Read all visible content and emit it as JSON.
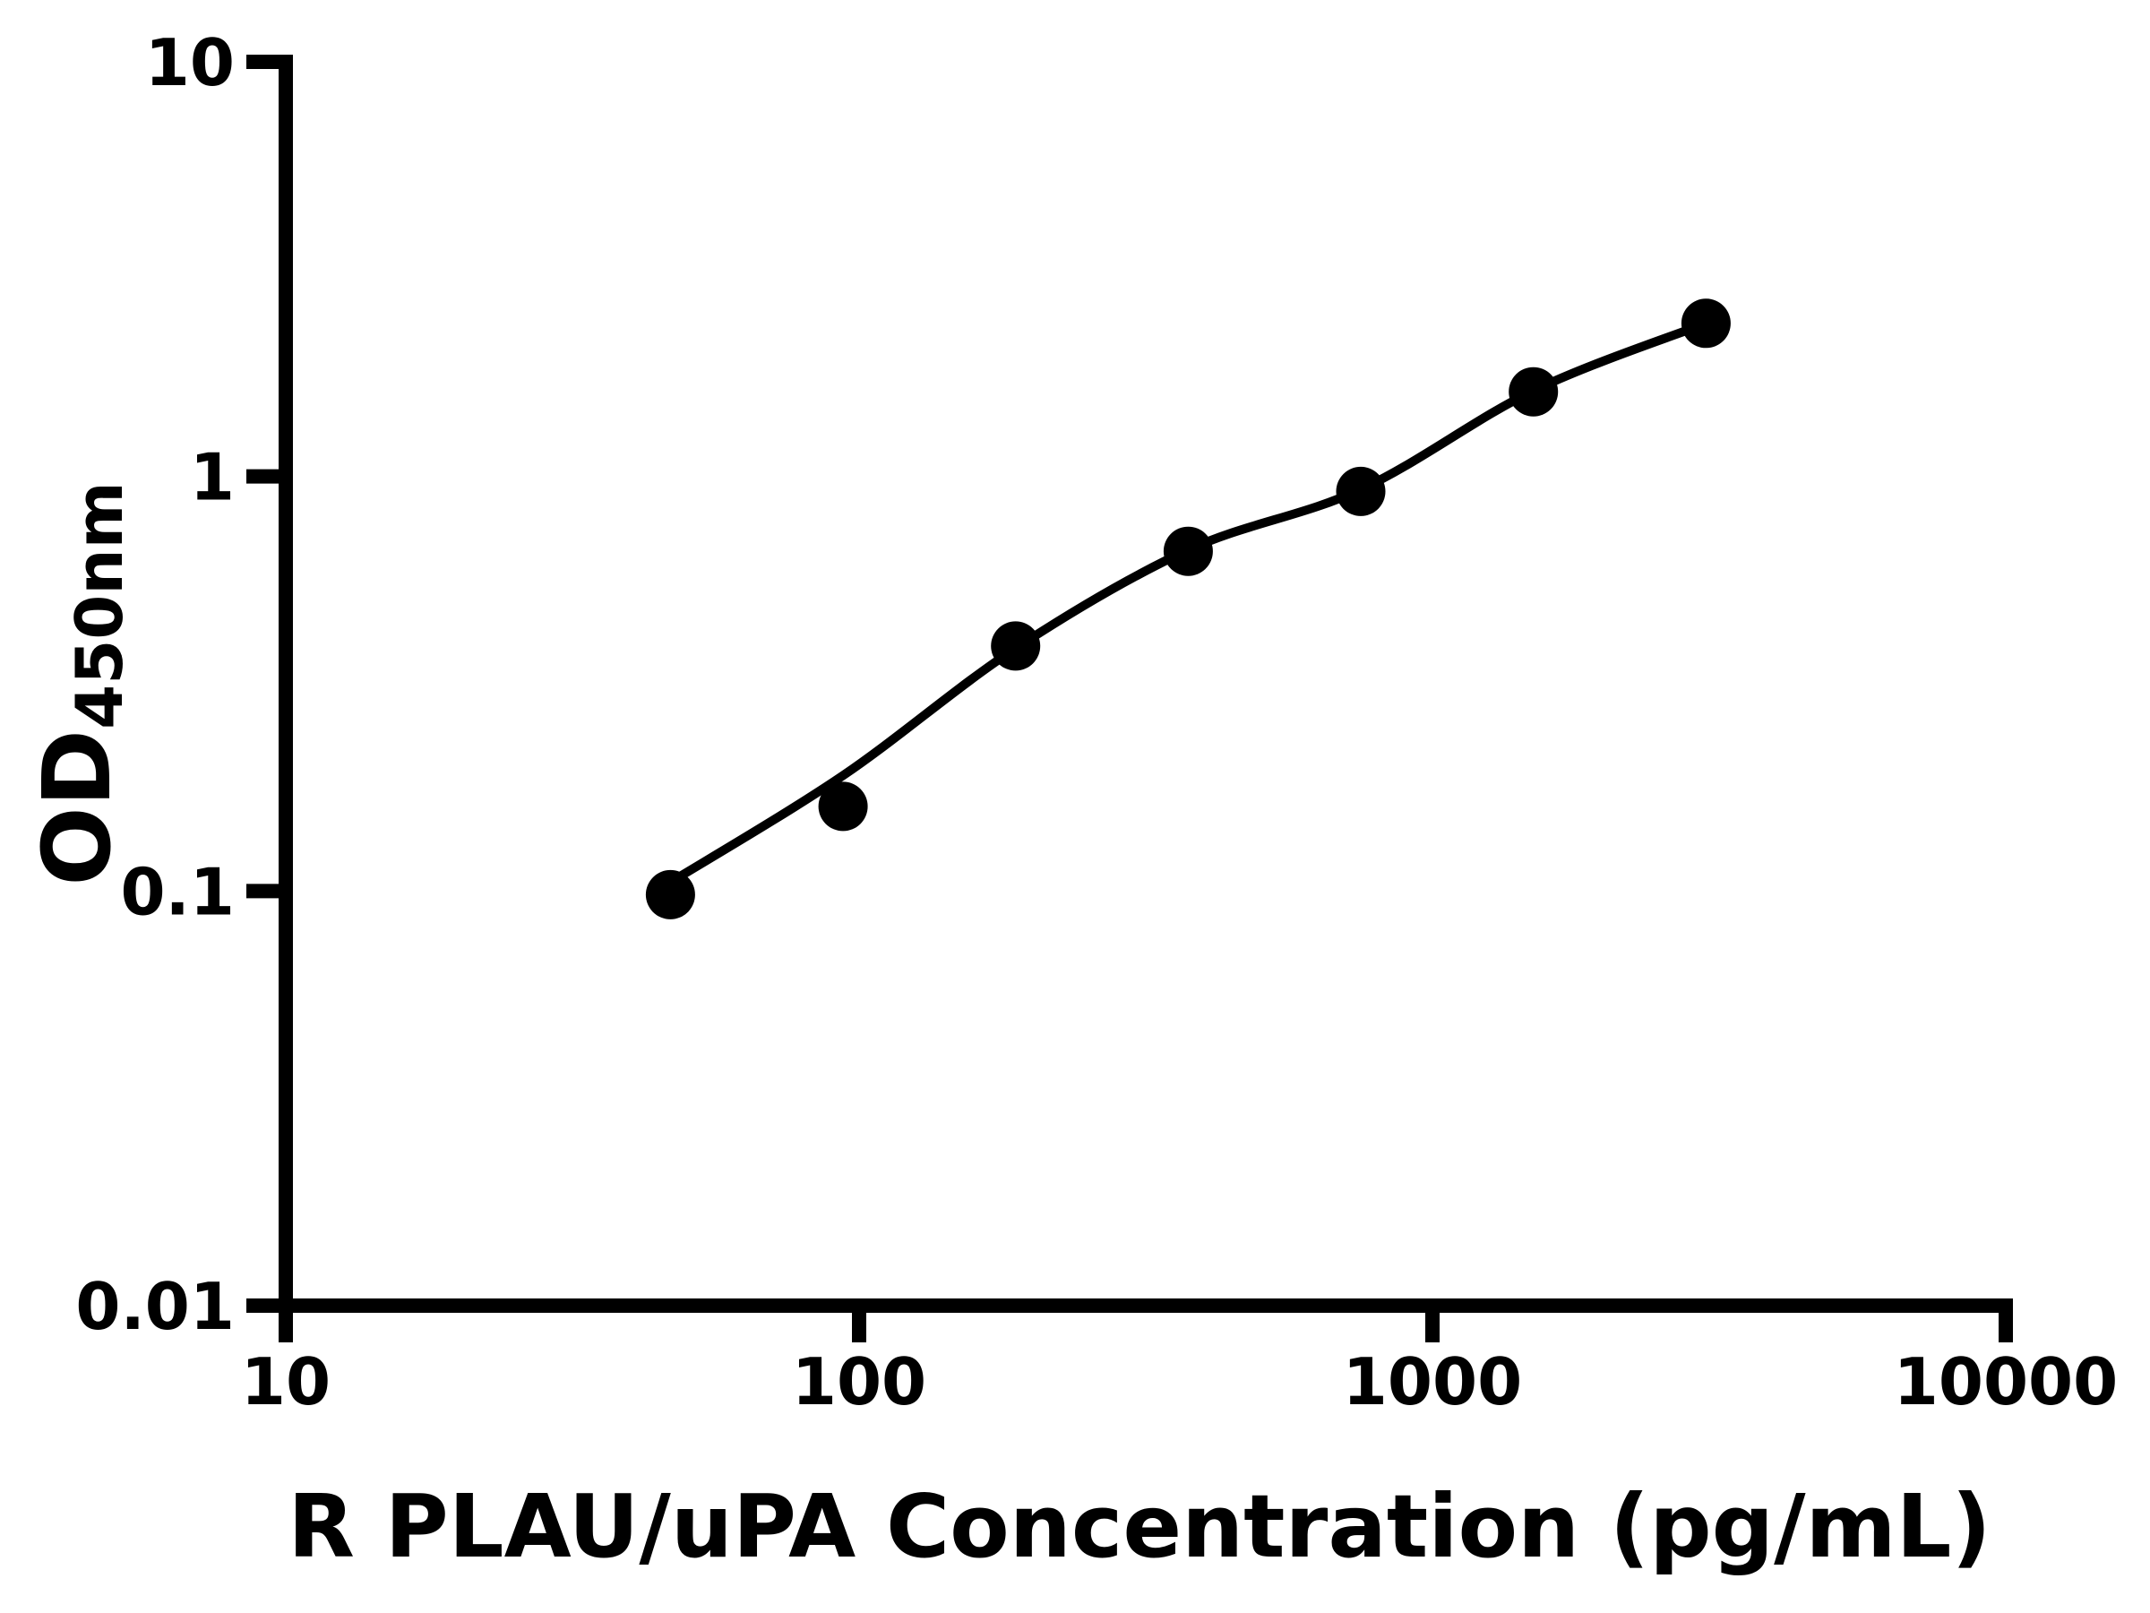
{
  "colors": {
    "foreground": "#000000",
    "background": "#ffffff",
    "marker": "#000000",
    "curve": "#000000"
  },
  "chart_data": {
    "type": "scatter",
    "title": "",
    "legend": "none",
    "grid": false,
    "x_axis": {
      "label": "R PLAU/uPA Concentration (pg/mL)",
      "scale": "log",
      "min": 10,
      "max": 10000,
      "ticks": [
        10,
        100,
        1000,
        10000
      ],
      "tick_labels": [
        "10",
        "100",
        "1000",
        "10000"
      ]
    },
    "y_axis": {
      "label": "OD",
      "label_subscript": "450nm",
      "scale": "log",
      "min": 0.01,
      "max": 10,
      "ticks": [
        0.01,
        0.1,
        1,
        10
      ],
      "tick_labels": [
        "0.01",
        "0.1",
        "1",
        "10"
      ]
    },
    "series": [
      {
        "name": "standard-curve-points",
        "marker": "circle",
        "points": [
          {
            "x": 46.88,
            "od": 0.098
          },
          {
            "x": 93.75,
            "od": 0.16
          },
          {
            "x": 187.5,
            "od": 0.39
          },
          {
            "x": 375,
            "od": 0.66
          },
          {
            "x": 750,
            "od": 0.92
          },
          {
            "x": 1500,
            "od": 1.6
          },
          {
            "x": 3000,
            "od": 2.34
          }
        ]
      }
    ],
    "fit_curve": {
      "name": "four-parameter-fit",
      "anchors": [
        {
          "x": 46.88,
          "od": 0.105
        },
        {
          "x": 93.75,
          "od": 0.19
        },
        {
          "x": 187.5,
          "od": 0.385
        },
        {
          "x": 375,
          "od": 0.665
        },
        {
          "x": 750,
          "od": 0.93
        },
        {
          "x": 1500,
          "od": 1.61
        },
        {
          "x": 3000,
          "od": 2.34
        }
      ]
    }
  }
}
